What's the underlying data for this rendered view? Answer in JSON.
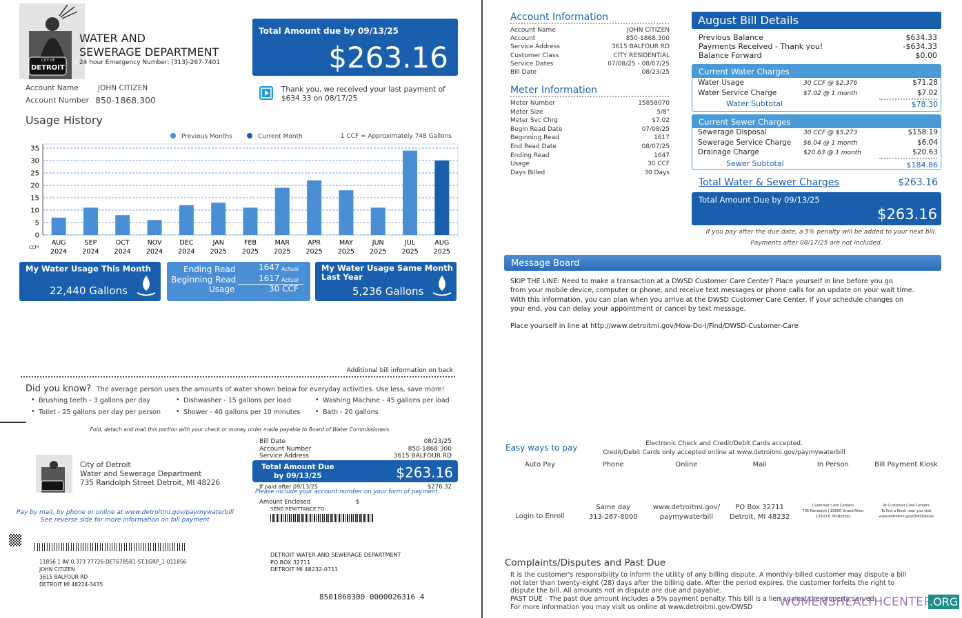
{
  "header": {
    "logo_city": "CITY OF",
    "logo_name": "DETROIT",
    "dept_line1": "WATER AND",
    "dept_line2": "SEWERAGE DEPARTMENT",
    "emergency": "24 hour Emergency Number: (313)-267-7401"
  },
  "due_box": {
    "label": "Total Amount due by 09/13/25",
    "amount": "$263.16"
  },
  "last_payment": [
    "Thank you, we received your last payment of",
    "$634.33 on 08/17/25"
  ],
  "account": {
    "name_label": "Account Name",
    "name": "JOHN CITIZEN",
    "number_label": "Account Number",
    "number": "850-1868.300"
  },
  "usage_chart": {
    "type": "bar",
    "title": "Usage History",
    "legend": [
      {
        "name": "Previous Months",
        "color": "#4a8fd6"
      },
      {
        "name": "Current Month",
        "color": "#1a5fad"
      }
    ],
    "note": "1 CCF = Approximately 748 Gallons",
    "unit": "CCF*",
    "categories": [
      [
        "AUG",
        "2024"
      ],
      [
        "SEP",
        "2024"
      ],
      [
        "OCT",
        "2024"
      ],
      [
        "NOV",
        "2024"
      ],
      [
        "DEC",
        "2024"
      ],
      [
        "JAN",
        "2025"
      ],
      [
        "FEB",
        "2025"
      ],
      [
        "MAR",
        "2025"
      ],
      [
        "APR",
        "2025"
      ],
      [
        "MAY",
        "2025"
      ],
      [
        "JUN",
        "2025"
      ],
      [
        "JUL",
        "2025"
      ],
      [
        "AUG",
        "2025"
      ]
    ],
    "values": [
      7,
      11,
      8,
      6,
      12,
      13,
      11,
      19,
      22,
      18,
      11,
      34,
      30
    ],
    "bar_colors": [
      "#4a8fd6",
      "#4a8fd6",
      "#4a8fd6",
      "#4a8fd6",
      "#4a8fd6",
      "#4a8fd6",
      "#4a8fd6",
      "#4a8fd6",
      "#4a8fd6",
      "#4a8fd6",
      "#4a8fd6",
      "#4a8fd6",
      "#1a5fad"
    ],
    "ylim": [
      0,
      35
    ],
    "yticks": [
      0,
      5,
      10,
      15,
      20,
      25,
      30,
      35
    ],
    "grid": true
  },
  "tiles": {
    "this_month": {
      "title": "My Water Usage This Month",
      "value": "22,440 Gallons"
    },
    "reads": {
      "ending_label": "Ending Read",
      "ending": "1647",
      "ending_type": "Actual",
      "beginning_label": "Beginning Read",
      "beginning": "1617",
      "beginning_type": "Actual",
      "usage_label": "Usage",
      "usage": "30 CCF"
    },
    "last_year": {
      "title": [
        "My Water Usage Same Month",
        "Last Year"
      ],
      "value": "5,236 Gallons"
    }
  },
  "additional_info": "Additional bill information on back",
  "did_you_know": {
    "title": "Did you know?",
    "intro": "The average person uses the amounts of water shown below for everyday activities.  Use less, save more!",
    "tips": [
      "Brushing teeth - 3 gallons per day",
      "Dishwasher - 15 gallons per load",
      "Washing Machine - 45 gallons per load",
      "Toilet - 25 gallons per day per person",
      "Shower - 40 gallons per 10 minutes",
      "Bath - 20 gallons"
    ]
  },
  "fold_note": "Fold, detach and mail this portion with your check or money order made payable to Board of Water Commissioners.",
  "stub": {
    "org": [
      "City of Detroit",
      "Water and Sewerage Department",
      "735 Randolph Street Detroit, MI 48226"
    ],
    "info": [
      [
        "Bill Date",
        "08/23/25"
      ],
      [
        "Account Number",
        "850-1868.300"
      ],
      [
        "Service Address",
        "3615 BALFOUR RD"
      ]
    ],
    "due_label": [
      "Total Amount Due",
      "by 09/13/25"
    ],
    "due_amount": "$263.16",
    "late_label": "If paid after 09/13/25",
    "late_amount": "$276.32",
    "include_note": "Please include your account number on your form of payment.",
    "enclosed_label": "Amount Enclosed",
    "enclosed_currency": "$",
    "remit_label": "SEND REMITTANCE TO:",
    "pay_note": [
      "Pay by mail, by phone or online at www.detroitmi.gov/paymywaterbill",
      "See reverse side for more information on bill payment"
    ],
    "mailing": [
      "11856 1 AV 0.373  77726-DET678581-ST.1GRP_1-011856",
      "JOHN CITIZEN",
      "3615 BALFOUR RD",
      "DETROIT  MI  48224-3435"
    ],
    "remit_address": [
      "DETROIT WATER AND SEWERAGE DEPARTMENT",
      "PO BOX 32711",
      "DETROIT  MI  48232-0711"
    ],
    "scanline": "8501868300 0000026316 4"
  },
  "account_info": {
    "title": "Account Information",
    "rows": [
      [
        "Account Name",
        "JOHN CITIZEN"
      ],
      [
        "Account",
        "850-1868.300"
      ],
      [
        "Service Address",
        "3615 BALFOUR RD"
      ],
      [
        "Customer Class",
        "CITY RESIDENTIAL"
      ],
      [
        "Service Dates",
        "07/08/25 - 08/07/25"
      ],
      [
        "Bill Date",
        "08/23/25"
      ]
    ]
  },
  "meter_info": {
    "title": "Meter Information",
    "rows": [
      [
        "Meter Number",
        "15858070"
      ],
      [
        "Meter Size",
        "5/8\""
      ],
      [
        "Meter Svc Chrg",
        "$7.02"
      ],
      [
        "Begin Read Date",
        "07/08/25"
      ],
      [
        "Beginning Read",
        "1617"
      ],
      [
        "End Read Date",
        "08/07/25"
      ],
      [
        "Ending Read",
        "1647"
      ],
      [
        "Usage",
        "30 CCF"
      ],
      [
        "Days Billed",
        "30 Days"
      ]
    ]
  },
  "bill_details": {
    "title": "August Bill Details",
    "rows": [
      [
        "Previous Balance",
        "$634.33"
      ],
      [
        "Payments Received - Thank you!",
        "-$634.33"
      ],
      [
        "Balance Forward",
        "$0.00"
      ]
    ],
    "water": {
      "title": "Current Water Charges",
      "rows": [
        [
          "Water Usage",
          "30 CCF @ $2.376",
          "$71.28"
        ],
        [
          "Water Service Charge",
          "$7.02 @ 1 month",
          "$7.02"
        ]
      ],
      "subtotal_label": "Water Subtotal",
      "subtotal": "$78.30"
    },
    "sewer": {
      "title": "Current Sewer Charges",
      "rows": [
        [
          "Sewerage Disposal",
          "30 CCF @ $5.273",
          "$158.19"
        ],
        [
          "Sewerage Service Charge",
          "$6.04 @ 1 month",
          "$6.04"
        ],
        [
          "Drainage Charge",
          "$20.63 @ 1 month",
          "$20.63"
        ]
      ],
      "subtotal_label": "Sewer Subtotal",
      "subtotal": "$184.86"
    },
    "total_label": "Total Water & Sewer Charges",
    "total": "$263.16",
    "due_label": "Total Amount Due by 09/13/25",
    "due_amount": "$263.16",
    "penalty_note": "If you pay after the due date, a 5% penalty will be added to your next bill.",
    "payments_note": "Payments after 08/17/25 are not included."
  },
  "message_board": {
    "title": "Message Board",
    "lines": [
      "SKIP THE LINE: Need to make a transaction at a DWSD Customer Care Center? Place yourself in line before you go",
      "from your mobile device, computer or phone, and receive text messages or phone calls for an update on your wait time.",
      "With this information, you can plan when you arrive at the DWSD Customer Care Center. If your schedule changes on",
      "your end, you can delay your appointment or cancel by text message."
    ],
    "link": "Place yourself in line at http://www.detroitmi.gov/How-Do-I/Find/DWSD-Customer-Care"
  },
  "payment": {
    "title": "Easy ways to pay",
    "notes": [
      "Electronic Check and Credit/Debit Cards accepted.",
      "Credit/Debit Cards only accepted online at www.detroitmi.gov/paymywaterbill"
    ],
    "methods": [
      {
        "name": "Auto Pay",
        "details": [
          "Login to Enroll"
        ]
      },
      {
        "name": "Phone",
        "details": [
          "Same day",
          "313-267-8000"
        ]
      },
      {
        "name": "Online",
        "details": [
          "www.detroitmi.gov/",
          "paymywaterbill"
        ]
      },
      {
        "name": "Mail",
        "details": [
          "PO Box 32711",
          "Detroit, MI 48232"
        ]
      },
      {
        "name": "In Person",
        "details": [
          "Customer Care Centers",
          "735 Randolph | 15600 Grand River",
          "13303 E. McNichols"
        ]
      },
      {
        "name": "Bill Payment Kiosk",
        "details": [
          "At Customer Care Centers",
          "To find a Kiosk near you visit",
          "www.detroitmi.gov/DWSDkiosk"
        ]
      }
    ]
  },
  "complaints": {
    "title": "Complaints/Disputes and Past Due",
    "lines": [
      "It is the customer's responsibility to inform the utility of any billing dispute.  A monthly-billed customer may dispute a bill",
      "not later than twenty-eight (28) days after the billing date.  After the period expires, the customer forfeits the right to",
      "dispute the bill.  All amounts not in dispute are due and payable.",
      "PAST DUE - The past due amount includes a 5% payment penalty.  This bill is a lien against the property served.",
      "For more information you may visit us online at www.detroitmi.gov/DWSD"
    ]
  },
  "watermark": {
    "name": "WOMENSHEALTHCENTER",
    "tld": ".ORG"
  }
}
